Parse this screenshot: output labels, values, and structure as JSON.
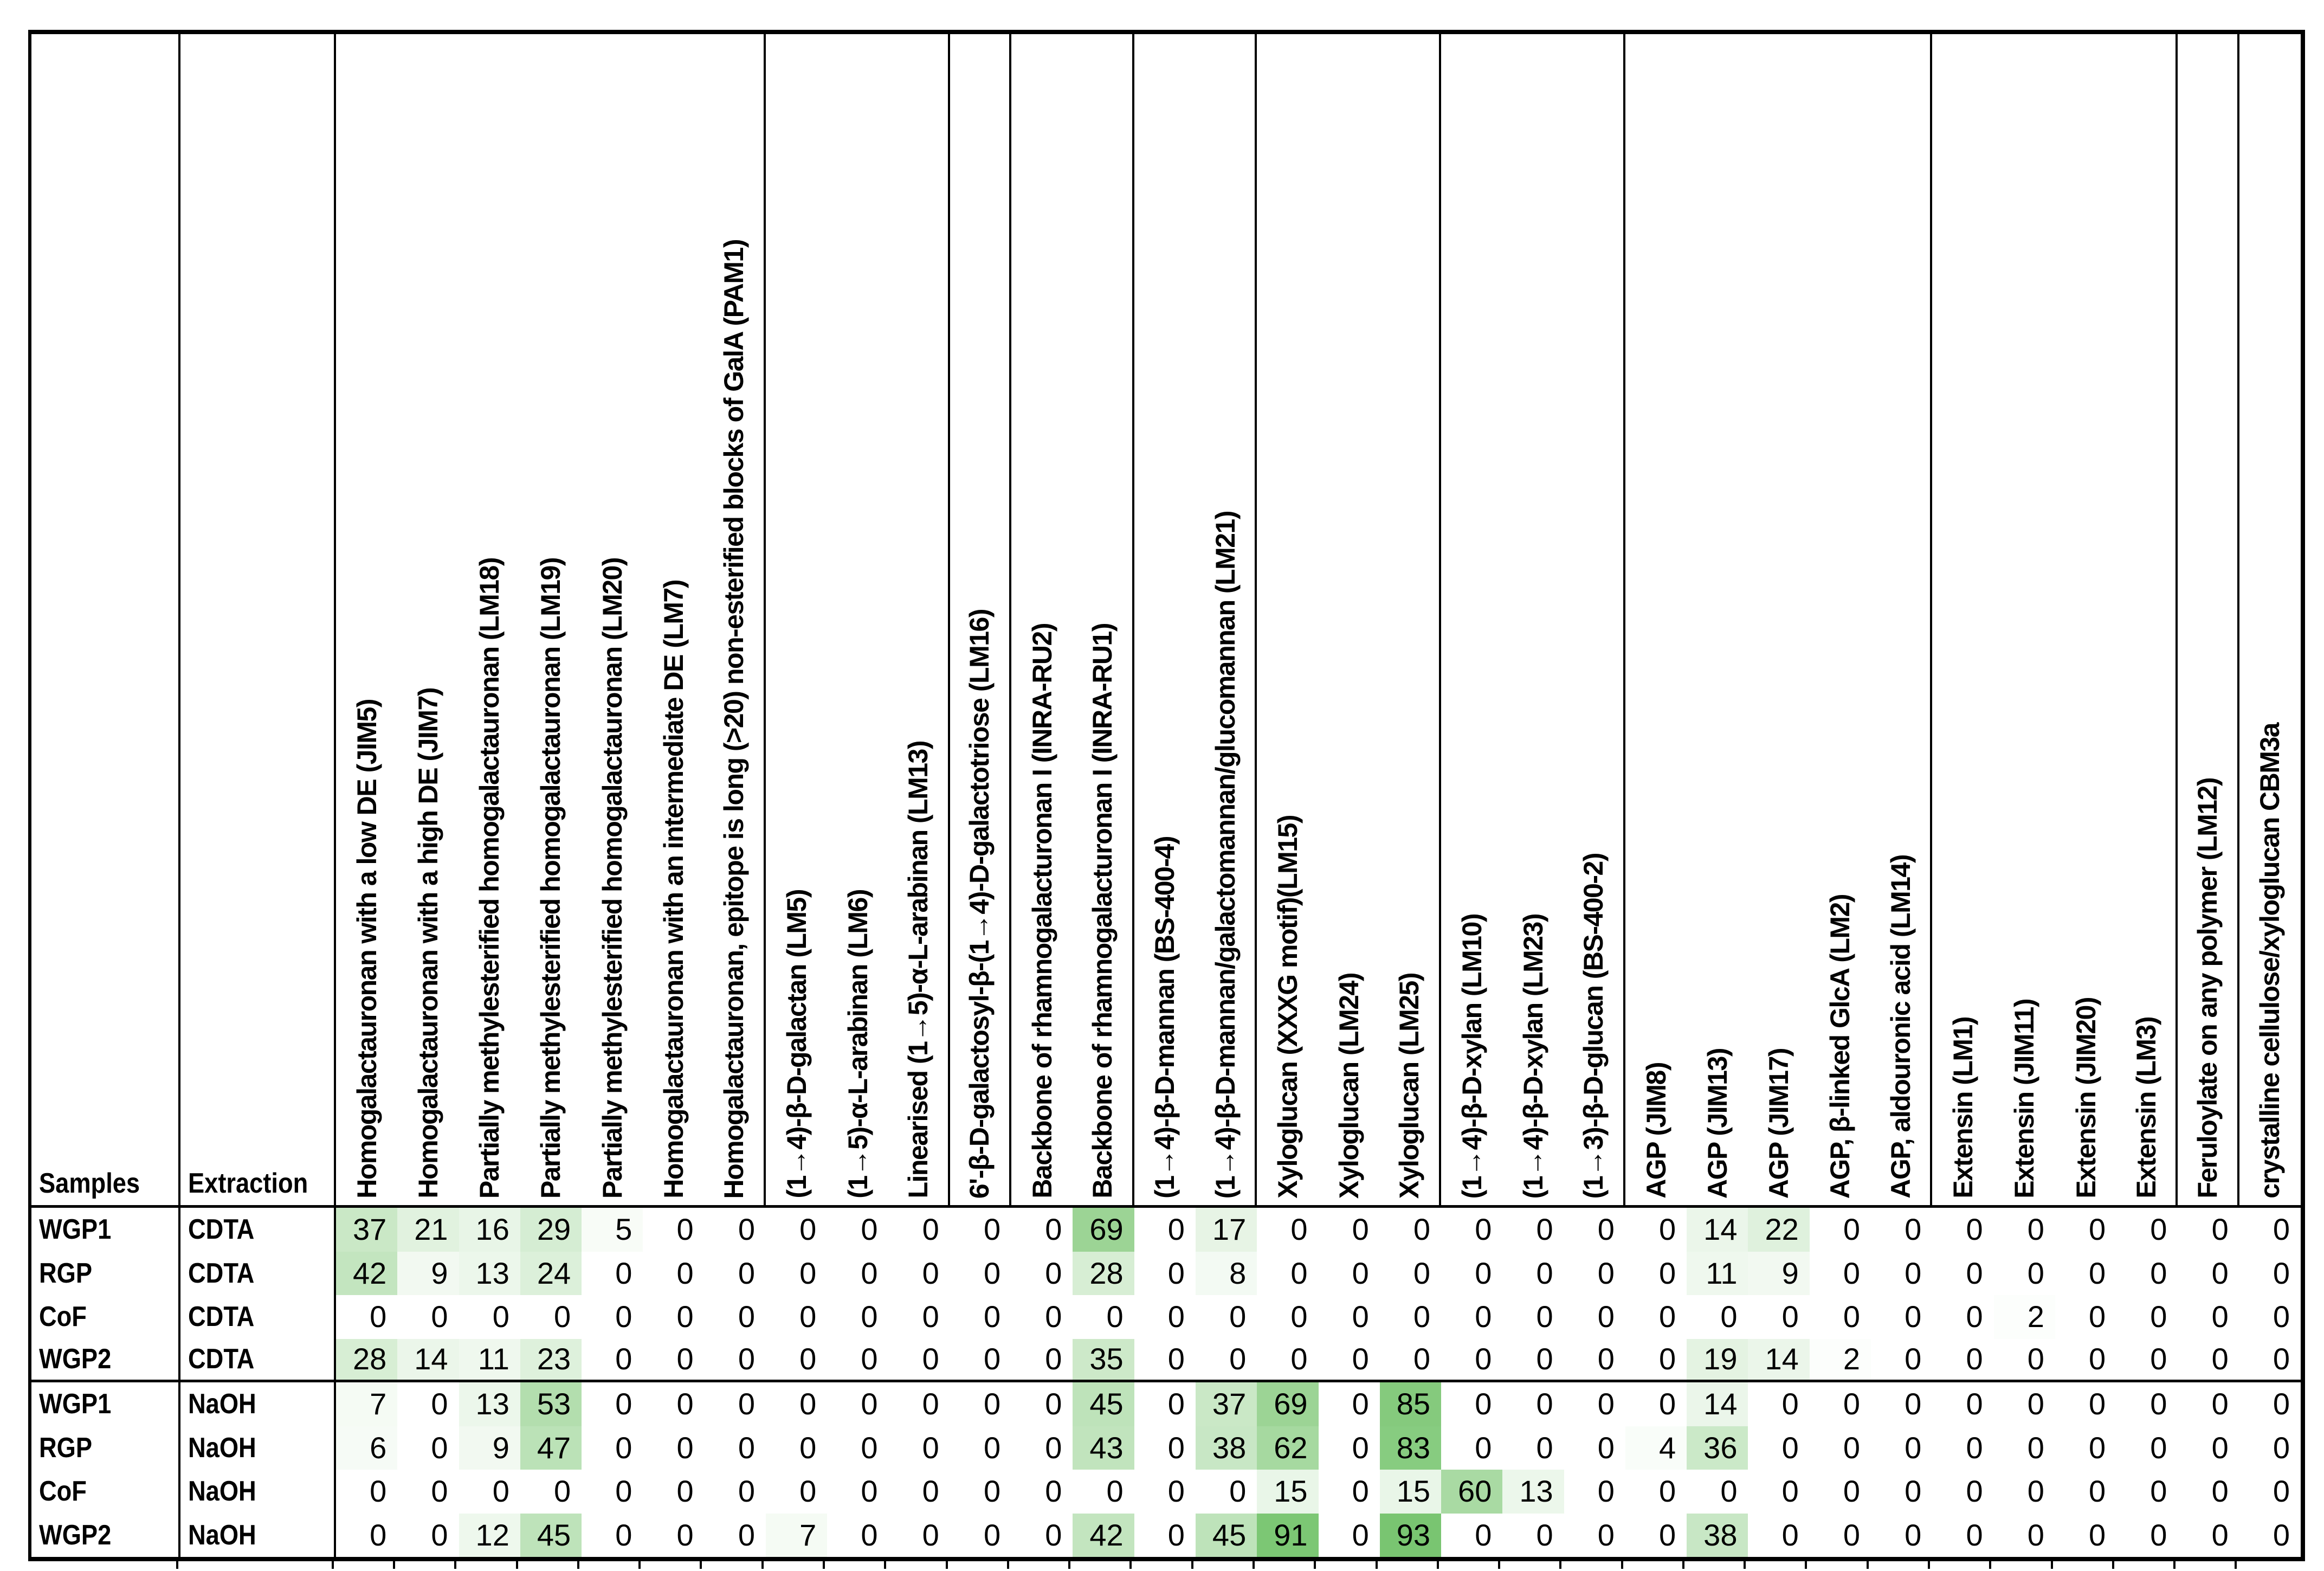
{
  "chart_data": {
    "type": "heatmap",
    "title": "",
    "corner_headers": {
      "samples": "Samples",
      "extraction": "Extraction"
    },
    "columns": [
      "Homogalactauronan with a low DE (JIM5)",
      "Homogalactauronan with a high DE (JIM7)",
      "Partially methylesterified homogalactauronan (LM18)",
      "Partially methylesterified homogalactauronan (LM19)",
      "Partially methylesterified homogalactauronan (LM20)",
      "Homogalactauronan with an intermediate DE (LM7)",
      "Homogalactauronan, epitope is long (>20) non-esterified blocks of GalA (PAM1)",
      "(1→4)-β-D-galactan (LM5)",
      "(1→5)-α-L-arabinan (LM6)",
      "Linearised (1→5)-α-L-arabinan (LM13)",
      "6'-β-D-galactosyl-β-(1→4)-D-galactotriose (LM16)",
      "Backbone of rhamnogalacturonan I (INRA-RU2)",
      "Backbone of rhamnogalacturonan I (INRA-RU1)",
      "(1→4)-β-D-mannan (BS-400-4)",
      "(1→4)-β-D-mannan/galactomannan/glucomannan (LM21)",
      "Xyloglucan (XXXG motif)(LM15)",
      "Xyloglucan (LM24)",
      "Xyloglucan (LM25)",
      "(1→4)-β-D-xylan (LM10)",
      "(1→4)-β-D-xylan (LM23)",
      "(1→3)-β-D-glucan (BS-400-2)",
      "AGP (JIM8)",
      "AGP (JIM13)",
      "AGP (JIM17)",
      "AGP, β-linked GlcA (LM2)",
      "AGP, aldouronic acid (LM14)",
      "Extensin (LM1)",
      "Extensin (JIM11)",
      "Extensin (JIM20)",
      "Extensin (LM3)",
      "Feruloylate on any polymer (LM12)",
      "crystalline cellulose/xyloglucan CBM3a"
    ],
    "column_group_separators_after": [
      7,
      10,
      11,
      13,
      15,
      18,
      21,
      26,
      30,
      31
    ],
    "rows": [
      {
        "sample": "WGP1",
        "extraction": "CDTA",
        "values": [
          37,
          21,
          16,
          29,
          5,
          0,
          0,
          0,
          0,
          0,
          0,
          0,
          69,
          0,
          17,
          0,
          0,
          0,
          0,
          0,
          0,
          0,
          14,
          22,
          0,
          0,
          0,
          0,
          0,
          0,
          0,
          0
        ]
      },
      {
        "sample": "RGP",
        "extraction": "CDTA",
        "values": [
          42,
          9,
          13,
          24,
          0,
          0,
          0,
          0,
          0,
          0,
          0,
          0,
          28,
          0,
          8,
          0,
          0,
          0,
          0,
          0,
          0,
          0,
          11,
          9,
          0,
          0,
          0,
          0,
          0,
          0,
          0,
          0
        ]
      },
      {
        "sample": "CoF",
        "extraction": "CDTA",
        "values": [
          0,
          0,
          0,
          0,
          0,
          0,
          0,
          0,
          0,
          0,
          0,
          0,
          0,
          0,
          0,
          0,
          0,
          0,
          0,
          0,
          0,
          0,
          0,
          0,
          0,
          0,
          0,
          2,
          0,
          0,
          0,
          0
        ]
      },
      {
        "sample": "WGP2",
        "extraction": "CDTA",
        "values": [
          28,
          14,
          11,
          23,
          0,
          0,
          0,
          0,
          0,
          0,
          0,
          0,
          35,
          0,
          0,
          0,
          0,
          0,
          0,
          0,
          0,
          0,
          19,
          14,
          2,
          0,
          0,
          0,
          0,
          0,
          0,
          0
        ]
      },
      {
        "sample": "WGP1",
        "extraction": "NaOH",
        "values": [
          7,
          0,
          13,
          53,
          0,
          0,
          0,
          0,
          0,
          0,
          0,
          0,
          45,
          0,
          37,
          69,
          0,
          85,
          0,
          0,
          0,
          0,
          14,
          0,
          0,
          0,
          0,
          0,
          0,
          0,
          0,
          0
        ]
      },
      {
        "sample": "RGP",
        "extraction": "NaOH",
        "values": [
          6,
          0,
          9,
          47,
          0,
          0,
          0,
          0,
          0,
          0,
          0,
          0,
          43,
          0,
          38,
          62,
          0,
          83,
          0,
          0,
          0,
          4,
          36,
          0,
          0,
          0,
          0,
          0,
          0,
          0,
          0,
          0
        ]
      },
      {
        "sample": "CoF",
        "extraction": "NaOH",
        "values": [
          0,
          0,
          0,
          0,
          0,
          0,
          0,
          0,
          0,
          0,
          0,
          0,
          0,
          0,
          0,
          15,
          0,
          15,
          60,
          13,
          0,
          0,
          0,
          0,
          0,
          0,
          0,
          0,
          0,
          0,
          0,
          0
        ]
      },
      {
        "sample": "WGP2",
        "extraction": "NaOH",
        "values": [
          0,
          0,
          12,
          45,
          0,
          0,
          0,
          7,
          0,
          0,
          0,
          0,
          42,
          0,
          45,
          91,
          0,
          93,
          0,
          0,
          0,
          0,
          38,
          0,
          0,
          0,
          0,
          0,
          0,
          0,
          0,
          0
        ]
      }
    ],
    "row_group_separator_after_row": 3,
    "color_scale": {
      "min_value": 0,
      "max_value": 100,
      "zero_color": "#ffffff",
      "full_color": "#6fc166"
    },
    "layout_hints": {
      "row_labels_bold": true,
      "header_rotation_deg": 90,
      "values_alignment": "right",
      "grid": "group separators only"
    }
  }
}
